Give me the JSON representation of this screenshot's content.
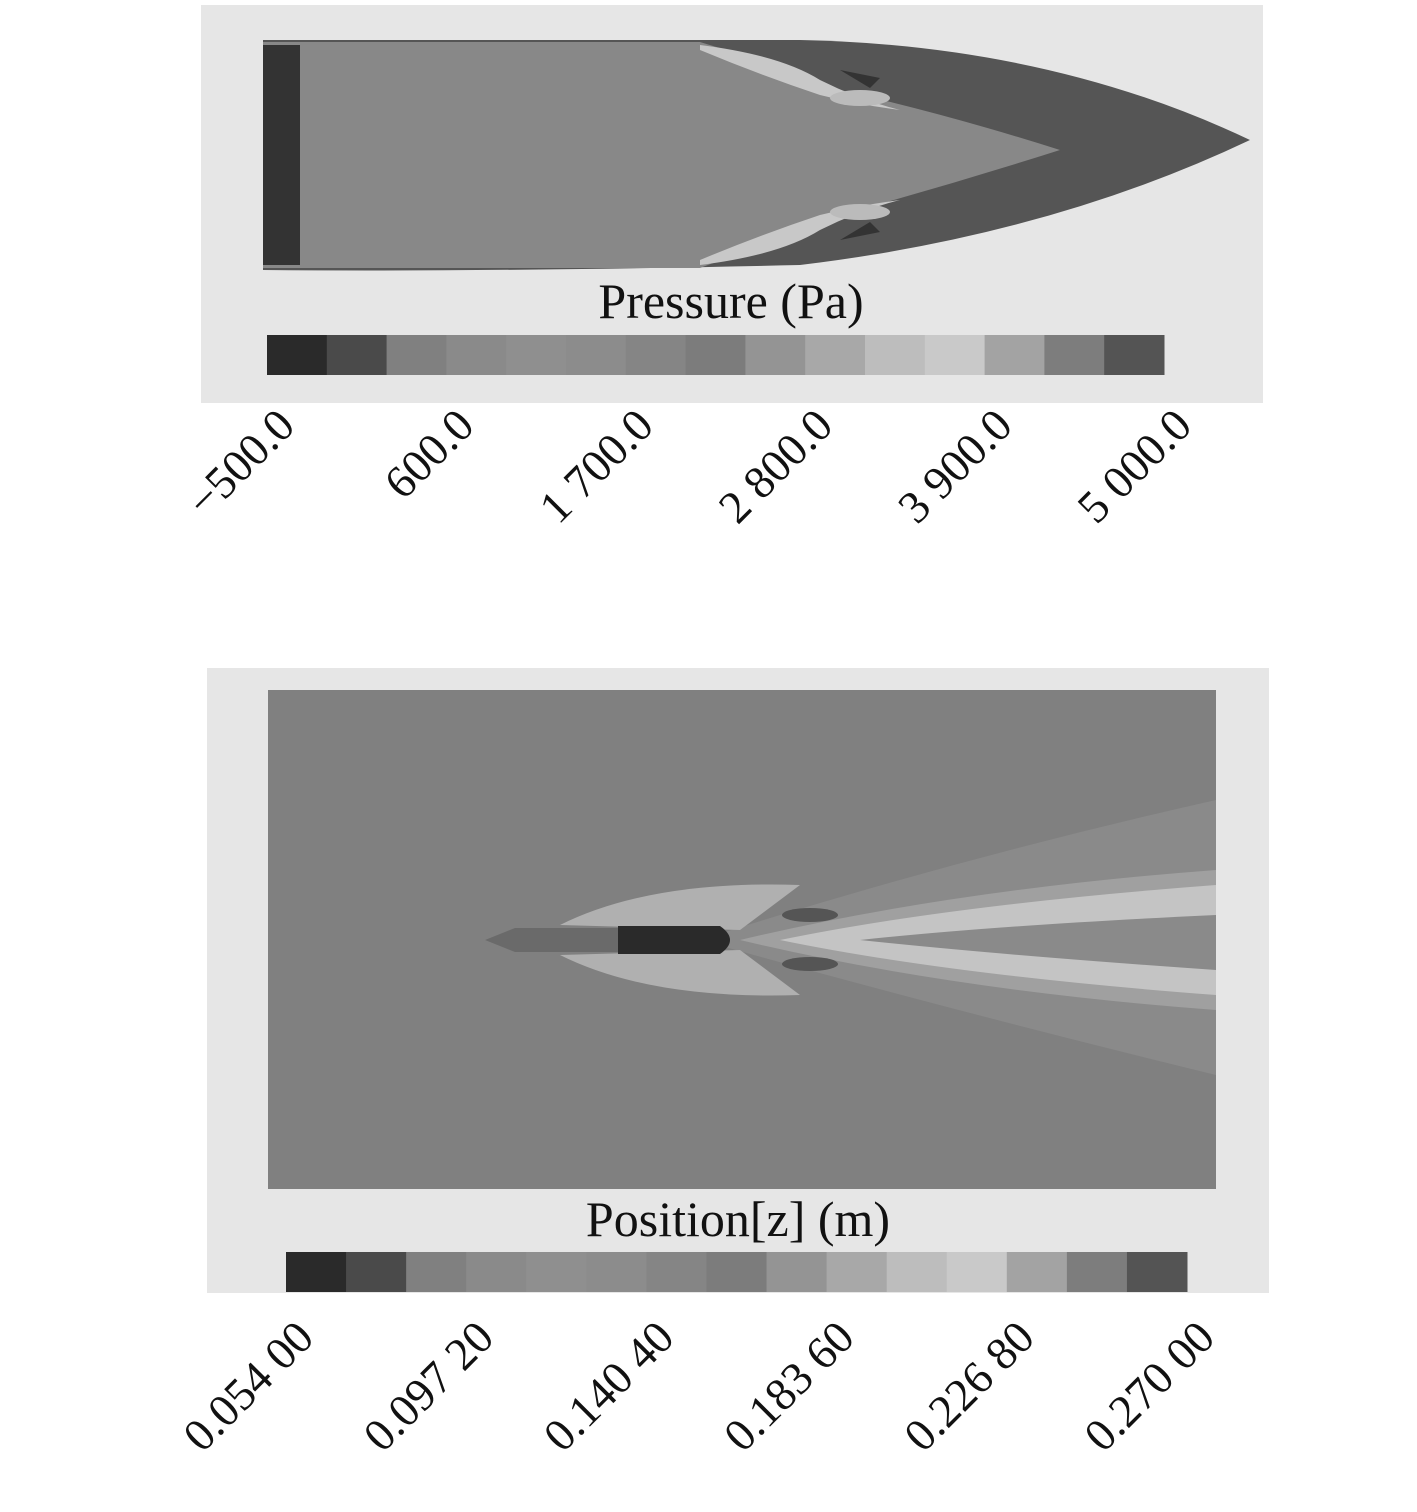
{
  "panels": [
    {
      "legend_title": "Pressure (Pa)",
      "tick_labels": [
        "−500.0",
        "600.0",
        "1 700.0",
        "2 800.0",
        "3 900.0",
        "5 000.0"
      ],
      "colorbar_colors": [
        "#2a2a2a",
        "#4a4a4a",
        "#808080",
        "#8a8a8a",
        "#8f8f8f",
        "#8c8c8c",
        "#858585",
        "#7c7c7c",
        "#949494",
        "#a8a8a8",
        "#bdbdbd",
        "#c9c9c9",
        "#a3a3a3",
        "#7d7d7d",
        "#545454"
      ]
    },
    {
      "legend_title": "Position[z] (m)",
      "tick_labels": [
        "0.054 00",
        "0.097 20",
        "0.140 40",
        "0.183 60",
        "0.226 80",
        "0.270 00"
      ],
      "colorbar_colors": [
        "#2a2a2a",
        "#4a4a4a",
        "#808080",
        "#8a8a8a",
        "#8f8f8f",
        "#8c8c8c",
        "#858585",
        "#7c7c7c",
        "#949494",
        "#a8a8a8",
        "#bdbdbd",
        "#c9c9c9",
        "#a3a3a3",
        "#7d7d7d",
        "#545454"
      ]
    }
  ]
}
